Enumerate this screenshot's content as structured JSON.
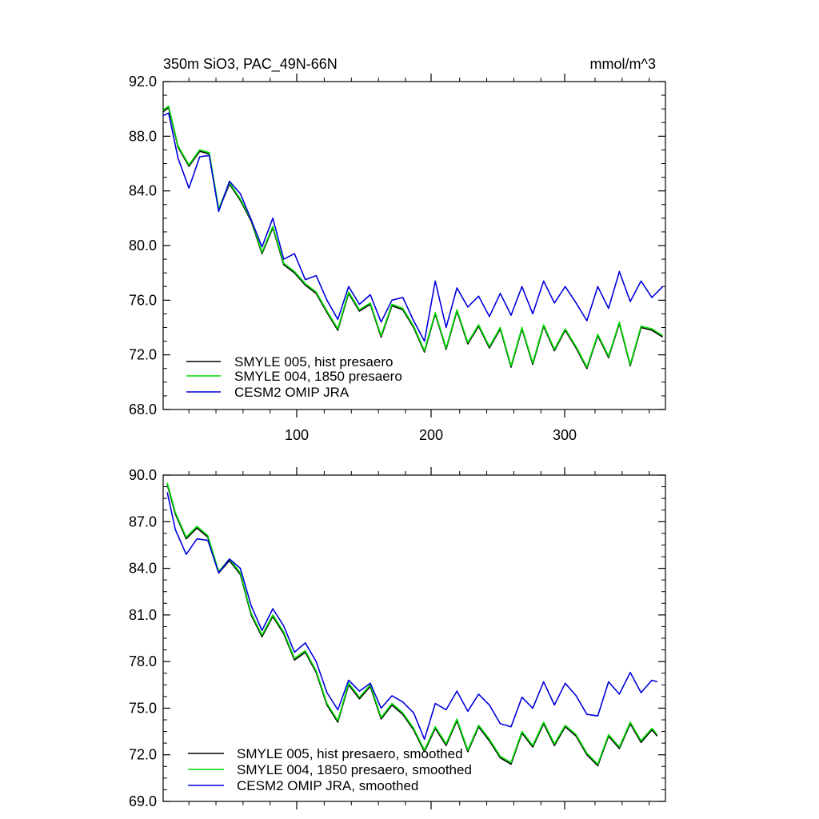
{
  "colors": {
    "smyle005": "#000000",
    "smyle004": "#00dd00",
    "omip": "#0000dd"
  },
  "chart_data": [
    {
      "type": "line",
      "title": "350m SiO3, PAC_49N-66N",
      "units": "mmol/m^3",
      "xlim": [
        1,
        372
      ],
      "ylim": [
        68,
        92
      ],
      "xticks": [
        "100",
        "200",
        "300"
      ],
      "yticks": [
        "92.0",
        "88.0",
        "84.0",
        "80.0",
        "76.0",
        "72.0",
        "68.0"
      ],
      "legend_position": "bottom-left",
      "series": [
        {
          "name": "SMYLE 005, hist presaero",
          "color": "#000000",
          "x": [
            1,
            5,
            12,
            20,
            28,
            35,
            42,
            50,
            58,
            66,
            74,
            82,
            90,
            98,
            106,
            114,
            122,
            130,
            138,
            146,
            154,
            162,
            170,
            178,
            186,
            194,
            202,
            210,
            218,
            226,
            234,
            242,
            250,
            258,
            266,
            274,
            282,
            290,
            298,
            306,
            314,
            322,
            330,
            338,
            346,
            354,
            362,
            370
          ],
          "y": [
            89.8,
            90.1,
            87.2,
            85.8,
            86.9,
            86.7,
            82.6,
            84.5,
            83.3,
            81.8,
            79.4,
            81.3,
            78.6,
            78.0,
            77.1,
            76.5,
            75.1,
            73.8,
            76.5,
            75.2,
            75.7,
            73.3,
            75.6,
            75.3,
            74.0,
            72.2,
            75.0,
            72.4,
            75.2,
            72.8,
            74.1,
            72.5,
            73.9,
            71.1,
            73.9,
            71.3,
            74.1,
            72.3,
            73.8,
            72.5,
            71.0,
            73.4,
            71.8,
            74.3,
            71.2,
            74.0,
            73.8,
            73.3
          ]
        },
        {
          "name": "SMYLE 004, 1850 presaero",
          "color": "#00dd00",
          "x": [
            1,
            5,
            12,
            20,
            28,
            35,
            42,
            50,
            58,
            66,
            74,
            82,
            90,
            98,
            106,
            114,
            122,
            130,
            138,
            146,
            154,
            162,
            170,
            178,
            186,
            194,
            202,
            210,
            218,
            226,
            234,
            242,
            250,
            258,
            266,
            274,
            282,
            290,
            298,
            306,
            314,
            322,
            330,
            338,
            346,
            354,
            362,
            370
          ],
          "y": [
            89.9,
            90.2,
            87.3,
            85.9,
            87.0,
            86.8,
            82.7,
            84.6,
            83.4,
            81.9,
            79.5,
            81.4,
            78.7,
            78.1,
            77.2,
            76.6,
            75.2,
            73.9,
            76.6,
            75.3,
            75.8,
            73.4,
            75.7,
            75.4,
            74.1,
            72.3,
            75.1,
            72.5,
            75.3,
            72.9,
            74.2,
            72.6,
            74.0,
            71.2,
            74.0,
            71.4,
            74.2,
            72.4,
            73.9,
            72.6,
            71.1,
            73.5,
            71.9,
            74.4,
            71.3,
            74.1,
            73.9,
            73.4
          ]
        },
        {
          "name": "CESM2 OMIP JRA",
          "color": "#0000dd",
          "x": [
            1,
            5,
            12,
            20,
            28,
            35,
            42,
            50,
            58,
            66,
            74,
            82,
            90,
            98,
            106,
            114,
            122,
            130,
            138,
            146,
            154,
            162,
            170,
            178,
            186,
            194,
            202,
            210,
            218,
            226,
            234,
            242,
            250,
            258,
            266,
            274,
            282,
            290,
            298,
            306,
            314,
            322,
            330,
            338,
            346,
            354,
            362,
            370
          ],
          "y": [
            89.5,
            89.7,
            86.4,
            84.2,
            86.5,
            86.6,
            82.5,
            84.7,
            83.8,
            81.9,
            79.9,
            82.0,
            79.0,
            79.4,
            77.5,
            77.8,
            76.0,
            74.6,
            77.0,
            75.7,
            76.4,
            74.4,
            76.0,
            76.2,
            74.5,
            73.0,
            77.4,
            74.0,
            76.9,
            75.5,
            76.3,
            74.8,
            76.5,
            74.9,
            77.0,
            75.0,
            77.4,
            75.8,
            77.0,
            75.8,
            74.5,
            77.0,
            75.4,
            78.1,
            75.9,
            77.4,
            76.2,
            77.0
          ]
        }
      ]
    },
    {
      "type": "line",
      "title": "",
      "xlim": [
        1,
        372
      ],
      "ylim": [
        69,
        90
      ],
      "xticks": [
        "",
        "",
        ""
      ],
      "yticks": [
        "90.0",
        "87.0",
        "84.0",
        "81.0",
        "78.0",
        "75.0",
        "72.0",
        "69.0"
      ],
      "legend_position": "bottom-left",
      "series": [
        {
          "name": "SMYLE 005, hist presaero, smoothed",
          "color": "#000000",
          "x": [
            4,
            10,
            18,
            26,
            34,
            42,
            50,
            58,
            66,
            74,
            82,
            90,
            98,
            106,
            114,
            122,
            130,
            138,
            146,
            154,
            162,
            170,
            178,
            186,
            194,
            202,
            210,
            218,
            226,
            234,
            242,
            250,
            258,
            266,
            274,
            282,
            290,
            298,
            306,
            314,
            322,
            330,
            338,
            346,
            354,
            362,
            366
          ],
          "y": [
            89.4,
            87.5,
            85.9,
            86.6,
            86.0,
            83.7,
            84.5,
            83.6,
            81.0,
            79.6,
            80.9,
            79.8,
            78.1,
            78.6,
            77.3,
            75.2,
            74.1,
            76.5,
            75.6,
            76.4,
            74.3,
            75.2,
            74.6,
            73.6,
            72.2,
            73.7,
            72.6,
            74.2,
            72.2,
            73.8,
            72.9,
            71.8,
            71.4,
            73.4,
            72.5,
            74.0,
            72.6,
            73.8,
            73.2,
            72.0,
            71.3,
            73.2,
            72.4,
            74.0,
            72.8,
            73.6,
            73.2
          ]
        },
        {
          "name": "SMYLE 004, 1850 presaero, smoothed",
          "color": "#00dd00",
          "x": [
            4,
            10,
            18,
            26,
            34,
            42,
            50,
            58,
            66,
            74,
            82,
            90,
            98,
            106,
            114,
            122,
            130,
            138,
            146,
            154,
            162,
            170,
            178,
            186,
            194,
            202,
            210,
            218,
            226,
            234,
            242,
            250,
            258,
            266,
            274,
            282,
            290,
            298,
            306,
            314,
            322,
            330,
            338,
            346,
            354,
            362,
            366
          ],
          "y": [
            89.5,
            87.6,
            86.0,
            86.7,
            86.1,
            83.8,
            84.6,
            83.7,
            81.1,
            79.7,
            81.0,
            79.9,
            78.2,
            78.7,
            77.4,
            75.3,
            74.2,
            76.6,
            75.7,
            76.5,
            74.4,
            75.3,
            74.7,
            73.7,
            72.3,
            73.8,
            72.7,
            74.3,
            72.3,
            73.9,
            73.0,
            71.9,
            71.5,
            73.5,
            72.6,
            74.1,
            72.7,
            73.9,
            73.3,
            72.1,
            71.4,
            73.3,
            72.5,
            74.1,
            72.9,
            73.7,
            73.3
          ]
        },
        {
          "name": "CESM2 OMIP JRA, smoothed",
          "color": "#0000dd",
          "x": [
            4,
            10,
            18,
            26,
            34,
            42,
            50,
            58,
            66,
            74,
            82,
            90,
            98,
            106,
            114,
            122,
            130,
            138,
            146,
            154,
            162,
            170,
            178,
            186,
            194,
            202,
            210,
            218,
            226,
            234,
            242,
            250,
            258,
            266,
            274,
            282,
            290,
            298,
            306,
            314,
            322,
            330,
            338,
            346,
            354,
            362,
            366
          ],
          "y": [
            88.9,
            86.5,
            84.9,
            85.9,
            85.8,
            83.7,
            84.6,
            84.0,
            81.6,
            80.0,
            81.4,
            80.3,
            78.6,
            79.2,
            78.0,
            76.0,
            74.9,
            76.8,
            76.1,
            76.6,
            75.0,
            75.8,
            75.4,
            74.7,
            73.0,
            75.3,
            74.9,
            76.1,
            74.8,
            75.9,
            75.2,
            74.0,
            73.8,
            75.7,
            75.0,
            76.7,
            75.2,
            76.6,
            75.8,
            74.6,
            74.5,
            76.7,
            75.9,
            77.3,
            76.0,
            76.8,
            76.7
          ]
        }
      ]
    }
  ]
}
